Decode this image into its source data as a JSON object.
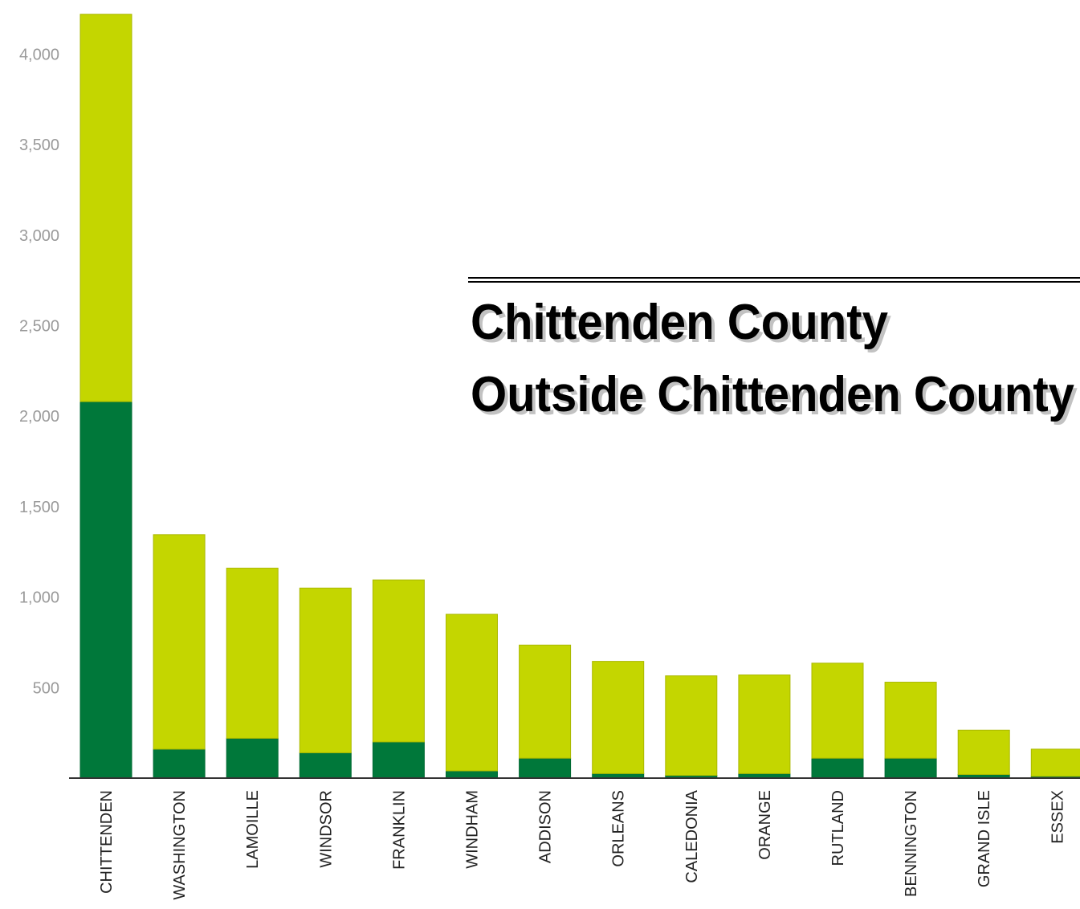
{
  "chart_data": {
    "type": "bar",
    "stacked": true,
    "categories": [
      "CHITTENDEN",
      "WASHINGTON",
      "LAMOILLE",
      "WINDSOR",
      "FRANKLIN",
      "WINDHAM",
      "ADDISON",
      "ORLEANS",
      "CALEDONIA",
      "ORANGE",
      "RUTLAND",
      "BENNINGTON",
      "GRAND ISLE",
      "ESSEX"
    ],
    "series": [
      {
        "name": "Chittenden County",
        "color": "#00783a",
        "values": [
          2080,
          160,
          220,
          140,
          200,
          40,
          110,
          25,
          15,
          25,
          110,
          110,
          20,
          10
        ]
      },
      {
        "name": "Outside Chittenden County",
        "color": "#c4d600",
        "values": [
          2140,
          1185,
          940,
          910,
          895,
          865,
          625,
          620,
          550,
          545,
          525,
          420,
          245,
          150
        ]
      }
    ],
    "ylim": [
      0,
      4250
    ],
    "yticks": [
      500,
      1000,
      1500,
      2000,
      2500,
      3000,
      3500,
      4000
    ],
    "ytick_labels": [
      "500",
      "1,000",
      "1,500",
      "2,000",
      "2,500",
      "3,000",
      "3,500",
      "4,000"
    ],
    "xlabel": "",
    "ylabel": "",
    "grid": false,
    "legend": {
      "position": "center-right",
      "entries": [
        "Chittenden County",
        "Outside Chittenden County"
      ]
    }
  }
}
